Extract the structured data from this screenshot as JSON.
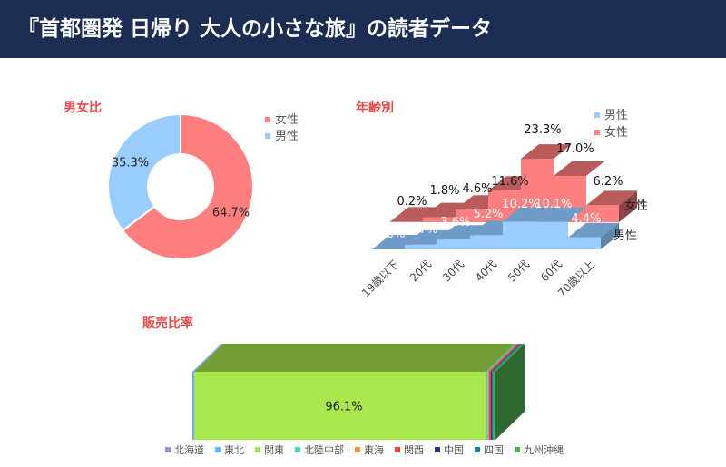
{
  "header": {
    "title": "『首都圏発 日帰り 大人の小さな旅』の読者データ"
  },
  "colors": {
    "header_bg": "#1b2d52",
    "female": "#ff7f7f",
    "male": "#99ccff",
    "section_title": "#e84a4a"
  },
  "chart_data": [
    {
      "type": "pie",
      "title": "男女比",
      "labels": [
        "女性",
        "男性"
      ],
      "values": [
        64.7,
        35.3
      ],
      "value_labels": [
        "64.7%",
        "35.3%"
      ],
      "legend": [
        "女性",
        "男性"
      ]
    },
    {
      "type": "bar",
      "title": "年齢別",
      "categories": [
        "19歳以下",
        "20代",
        "30代",
        "40代",
        "50代",
        "60代",
        "70歳以上"
      ],
      "series": [
        {
          "name": "男性",
          "values": [
            0.0,
            1.7,
            3.6,
            5.2,
            10.2,
            10.1,
            4.4
          ],
          "labels": [
            "0.0%",
            "1.7%",
            "3.6%",
            "5.2%",
            "10.2%",
            "10.1%",
            "4.4%"
          ]
        },
        {
          "name": "女性",
          "values": [
            0.2,
            1.8,
            4.6,
            11.6,
            23.3,
            17.0,
            6.2
          ],
          "labels": [
            "0.2%",
            "1.8%",
            "4.6%",
            "11.6%",
            "23.3%",
            "17.0%",
            "6.2%"
          ]
        }
      ],
      "legend": [
        "男性",
        "女性"
      ],
      "row_labels": [
        "女性",
        "男性"
      ]
    },
    {
      "type": "bar",
      "title": "販売比率",
      "categories": [
        "北海道",
        "東北",
        "関東",
        "北陸中部",
        "東海",
        "関西",
        "中国",
        "四国",
        "九州沖縄"
      ],
      "values": [
        0.3,
        0.4,
        96.1,
        0.7,
        0.3,
        0.7,
        0.3,
        0.5,
        0.7
      ],
      "data_label": "96.1%",
      "colors": [
        "#8e9ccc",
        "#4fc3f7",
        "#a8e84c",
        "#4dd0c0",
        "#ff8c3a",
        "#f04040",
        "#283593",
        "#0b7fb0",
        "#4caf50"
      ]
    }
  ]
}
